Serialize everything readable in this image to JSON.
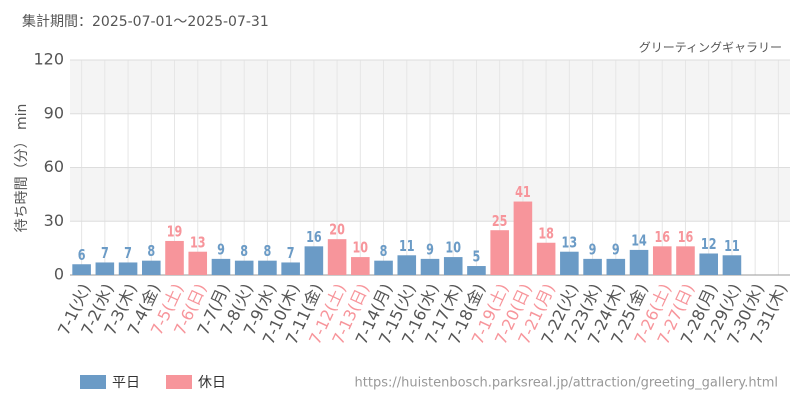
{
  "chart_data": {
    "type": "bar",
    "title": "集計期間：2025-07-01～2025-07-31",
    "subtitle": "グリーティングギャラリー",
    "y_label": "待ち時間（分） min",
    "source": "https://huistenbosch.parksreal.jp/attraction/greeting_gallery.html",
    "categories": [
      "7-1(火)",
      "7-2(水)",
      "7-3(木)",
      "7-4(金)",
      "7-5(土)",
      "7-6(日)",
      "7-7(月)",
      "7-8(火)",
      "7-9(水)",
      "7-10(木)",
      "7-11(金)",
      "7-12(土)",
      "7-13(日)",
      "7-14(月)",
      "7-15(火)",
      "7-16(水)",
      "7-17(木)",
      "7-18(金)",
      "7-19(土)",
      "7-20(日)",
      "7-21(月)",
      "7-22(火)",
      "7-23(水)",
      "7-24(木)",
      "7-25(金)",
      "7-26(土)",
      "7-27(日)",
      "7-28(月)",
      "7-29(火)",
      "7-30(水)",
      "7-31(木)"
    ],
    "series": [
      {
        "name": "平日",
        "color": "#6b9bc6",
        "values": [
          6,
          7,
          7,
          8,
          null,
          null,
          9,
          8,
          8,
          7,
          16,
          null,
          null,
          8,
          11,
          9,
          10,
          5,
          null,
          null,
          null,
          13,
          9,
          9,
          14,
          null,
          null,
          12,
          11,
          null,
          null
        ]
      },
      {
        "name": "休日",
        "color": "#f7959b",
        "values": [
          null,
          null,
          null,
          null,
          19,
          13,
          null,
          null,
          null,
          null,
          null,
          20,
          10,
          null,
          null,
          null,
          null,
          null,
          25,
          41,
          18,
          null,
          null,
          null,
          null,
          16,
          16,
          null,
          null,
          null,
          null
        ]
      }
    ],
    "ylim": [
      0,
      120
    ],
    "yticks": [
      0,
      30,
      60,
      90,
      120
    ],
    "grid": true,
    "legend": "bottom-left"
  }
}
